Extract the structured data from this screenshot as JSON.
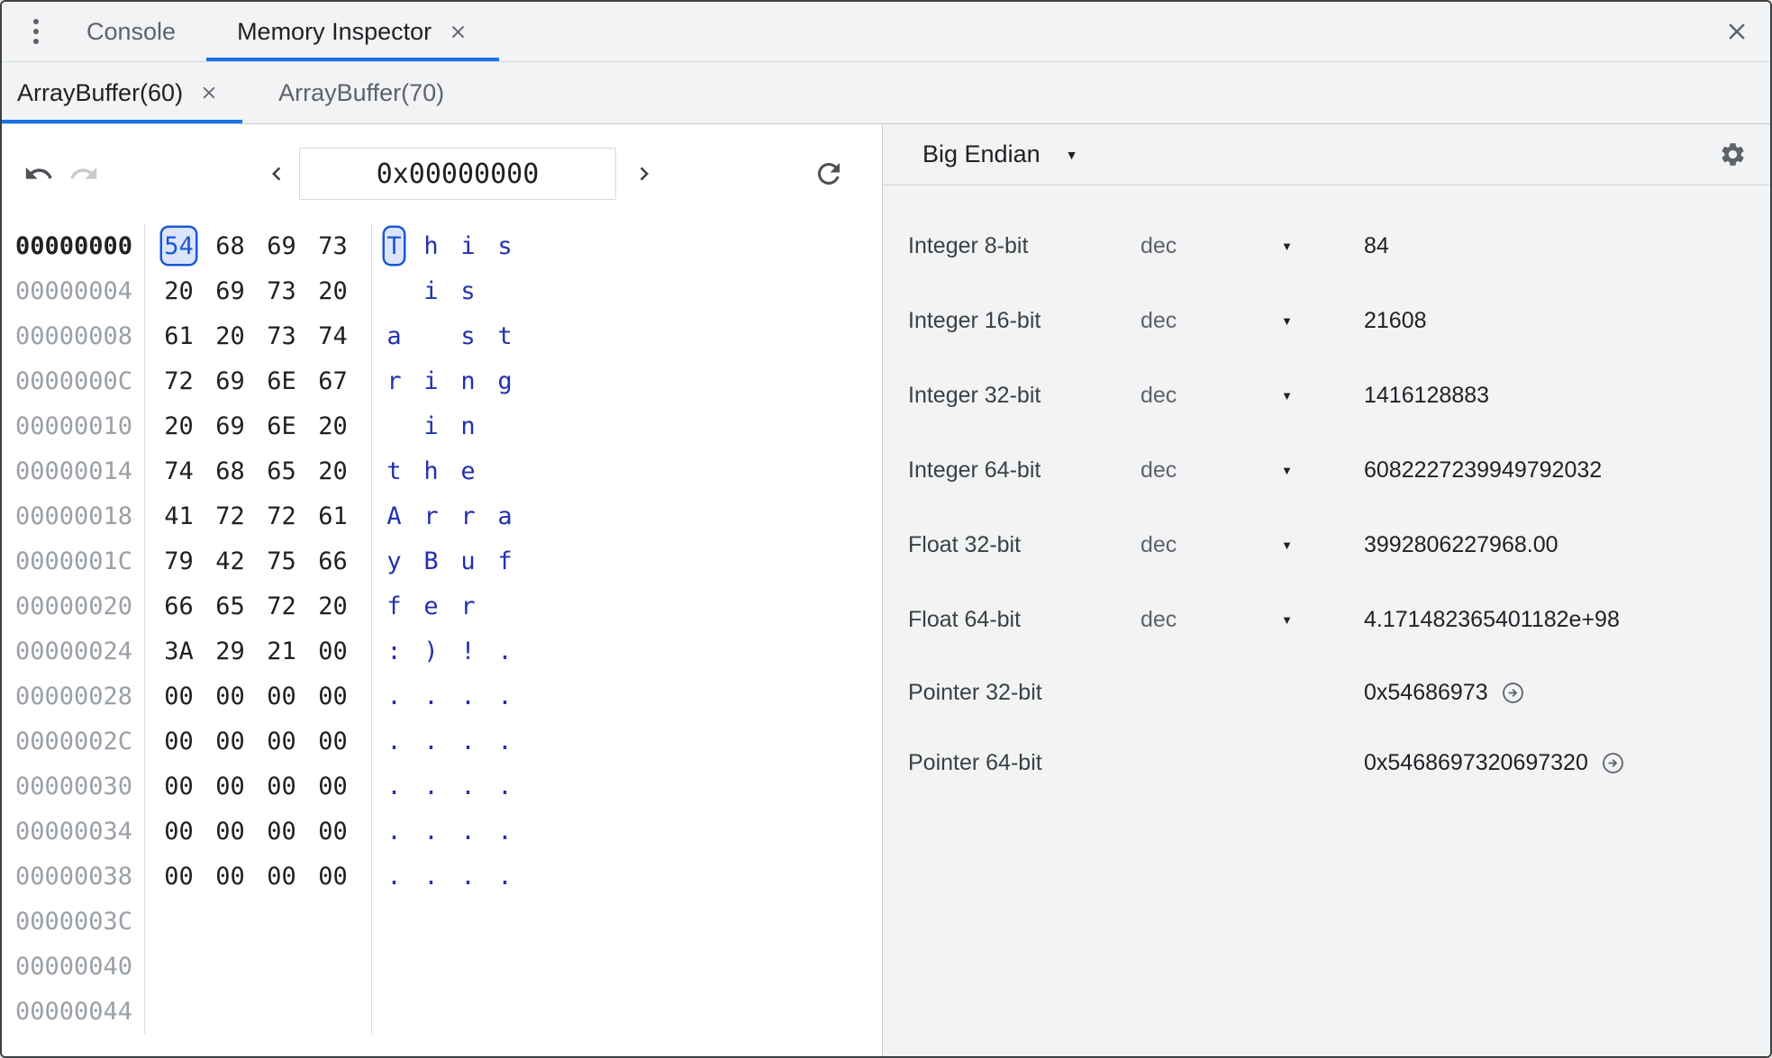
{
  "drawer_tabs": {
    "tabs": [
      {
        "label": "Console",
        "active": false,
        "closable": false
      },
      {
        "label": "Memory Inspector",
        "active": true,
        "closable": true
      }
    ]
  },
  "buffer_tabs": [
    {
      "label": "ArrayBuffer(60)",
      "active": true,
      "closable": true
    },
    {
      "label": "ArrayBuffer(70)",
      "active": false,
      "closable": false
    }
  ],
  "toolbar": {
    "address": "0x00000000"
  },
  "hex_view": {
    "selected": {
      "row": 0,
      "byte": 0
    },
    "rows": [
      {
        "address": "00000000",
        "bytes": [
          "54",
          "68",
          "69",
          "73"
        ],
        "ascii": [
          "T",
          "h",
          "i",
          "s"
        ]
      },
      {
        "address": "00000004",
        "bytes": [
          "20",
          "69",
          "73",
          "20"
        ],
        "ascii": [
          " ",
          "i",
          "s",
          " "
        ]
      },
      {
        "address": "00000008",
        "bytes": [
          "61",
          "20",
          "73",
          "74"
        ],
        "ascii": [
          "a",
          " ",
          "s",
          "t"
        ]
      },
      {
        "address": "0000000C",
        "bytes": [
          "72",
          "69",
          "6E",
          "67"
        ],
        "ascii": [
          "r",
          "i",
          "n",
          "g"
        ]
      },
      {
        "address": "00000010",
        "bytes": [
          "20",
          "69",
          "6E",
          "20"
        ],
        "ascii": [
          " ",
          "i",
          "n",
          " "
        ]
      },
      {
        "address": "00000014",
        "bytes": [
          "74",
          "68",
          "65",
          "20"
        ],
        "ascii": [
          "t",
          "h",
          "e",
          " "
        ]
      },
      {
        "address": "00000018",
        "bytes": [
          "41",
          "72",
          "72",
          "61"
        ],
        "ascii": [
          "A",
          "r",
          "r",
          "a"
        ]
      },
      {
        "address": "0000001C",
        "bytes": [
          "79",
          "42",
          "75",
          "66"
        ],
        "ascii": [
          "y",
          "B",
          "u",
          "f"
        ]
      },
      {
        "address": "00000020",
        "bytes": [
          "66",
          "65",
          "72",
          "20"
        ],
        "ascii": [
          "f",
          "e",
          "r",
          " "
        ]
      },
      {
        "address": "00000024",
        "bytes": [
          "3A",
          "29",
          "21",
          "00"
        ],
        "ascii": [
          ":",
          ")",
          "!",
          "."
        ]
      },
      {
        "address": "00000028",
        "bytes": [
          "00",
          "00",
          "00",
          "00"
        ],
        "ascii": [
          ".",
          ".",
          ".",
          "."
        ]
      },
      {
        "address": "0000002C",
        "bytes": [
          "00",
          "00",
          "00",
          "00"
        ],
        "ascii": [
          ".",
          ".",
          ".",
          "."
        ]
      },
      {
        "address": "00000030",
        "bytes": [
          "00",
          "00",
          "00",
          "00"
        ],
        "ascii": [
          ".",
          ".",
          ".",
          "."
        ]
      },
      {
        "address": "00000034",
        "bytes": [
          "00",
          "00",
          "00",
          "00"
        ],
        "ascii": [
          ".",
          ".",
          ".",
          "."
        ]
      },
      {
        "address": "00000038",
        "bytes": [
          "00",
          "00",
          "00",
          "00"
        ],
        "ascii": [
          ".",
          ".",
          ".",
          "."
        ]
      },
      {
        "address": "0000003C",
        "bytes": [],
        "ascii": []
      },
      {
        "address": "00000040",
        "bytes": [],
        "ascii": []
      },
      {
        "address": "00000044",
        "bytes": [],
        "ascii": []
      }
    ]
  },
  "value_inspector": {
    "endianness": "Big Endian",
    "rows": [
      {
        "type": "Integer 8-bit",
        "mode": "dec",
        "value": "84",
        "jump": false
      },
      {
        "type": "Integer 16-bit",
        "mode": "dec",
        "value": "21608",
        "jump": false
      },
      {
        "type": "Integer 32-bit",
        "mode": "dec",
        "value": "1416128883",
        "jump": false
      },
      {
        "type": "Integer 64-bit",
        "mode": "dec",
        "value": "6082227239949792032",
        "jump": false
      },
      {
        "type": "Float 32-bit",
        "mode": "dec",
        "value": "3992806227968.00",
        "jump": false
      },
      {
        "type": "Float 64-bit",
        "mode": "dec",
        "value": "4.171482365401182e+98",
        "jump": false
      },
      {
        "type": "Pointer 32-bit",
        "mode": "",
        "value": "0x54686973",
        "jump": true
      },
      {
        "type": "Pointer 64-bit",
        "mode": "",
        "value": "0x5468697320697320",
        "jump": true
      }
    ]
  },
  "colors": {
    "accent": "#1a73e8",
    "selection": "#1b57d4",
    "ascii_text": "#2231ae",
    "panel_bg": "#f1f3f4"
  }
}
